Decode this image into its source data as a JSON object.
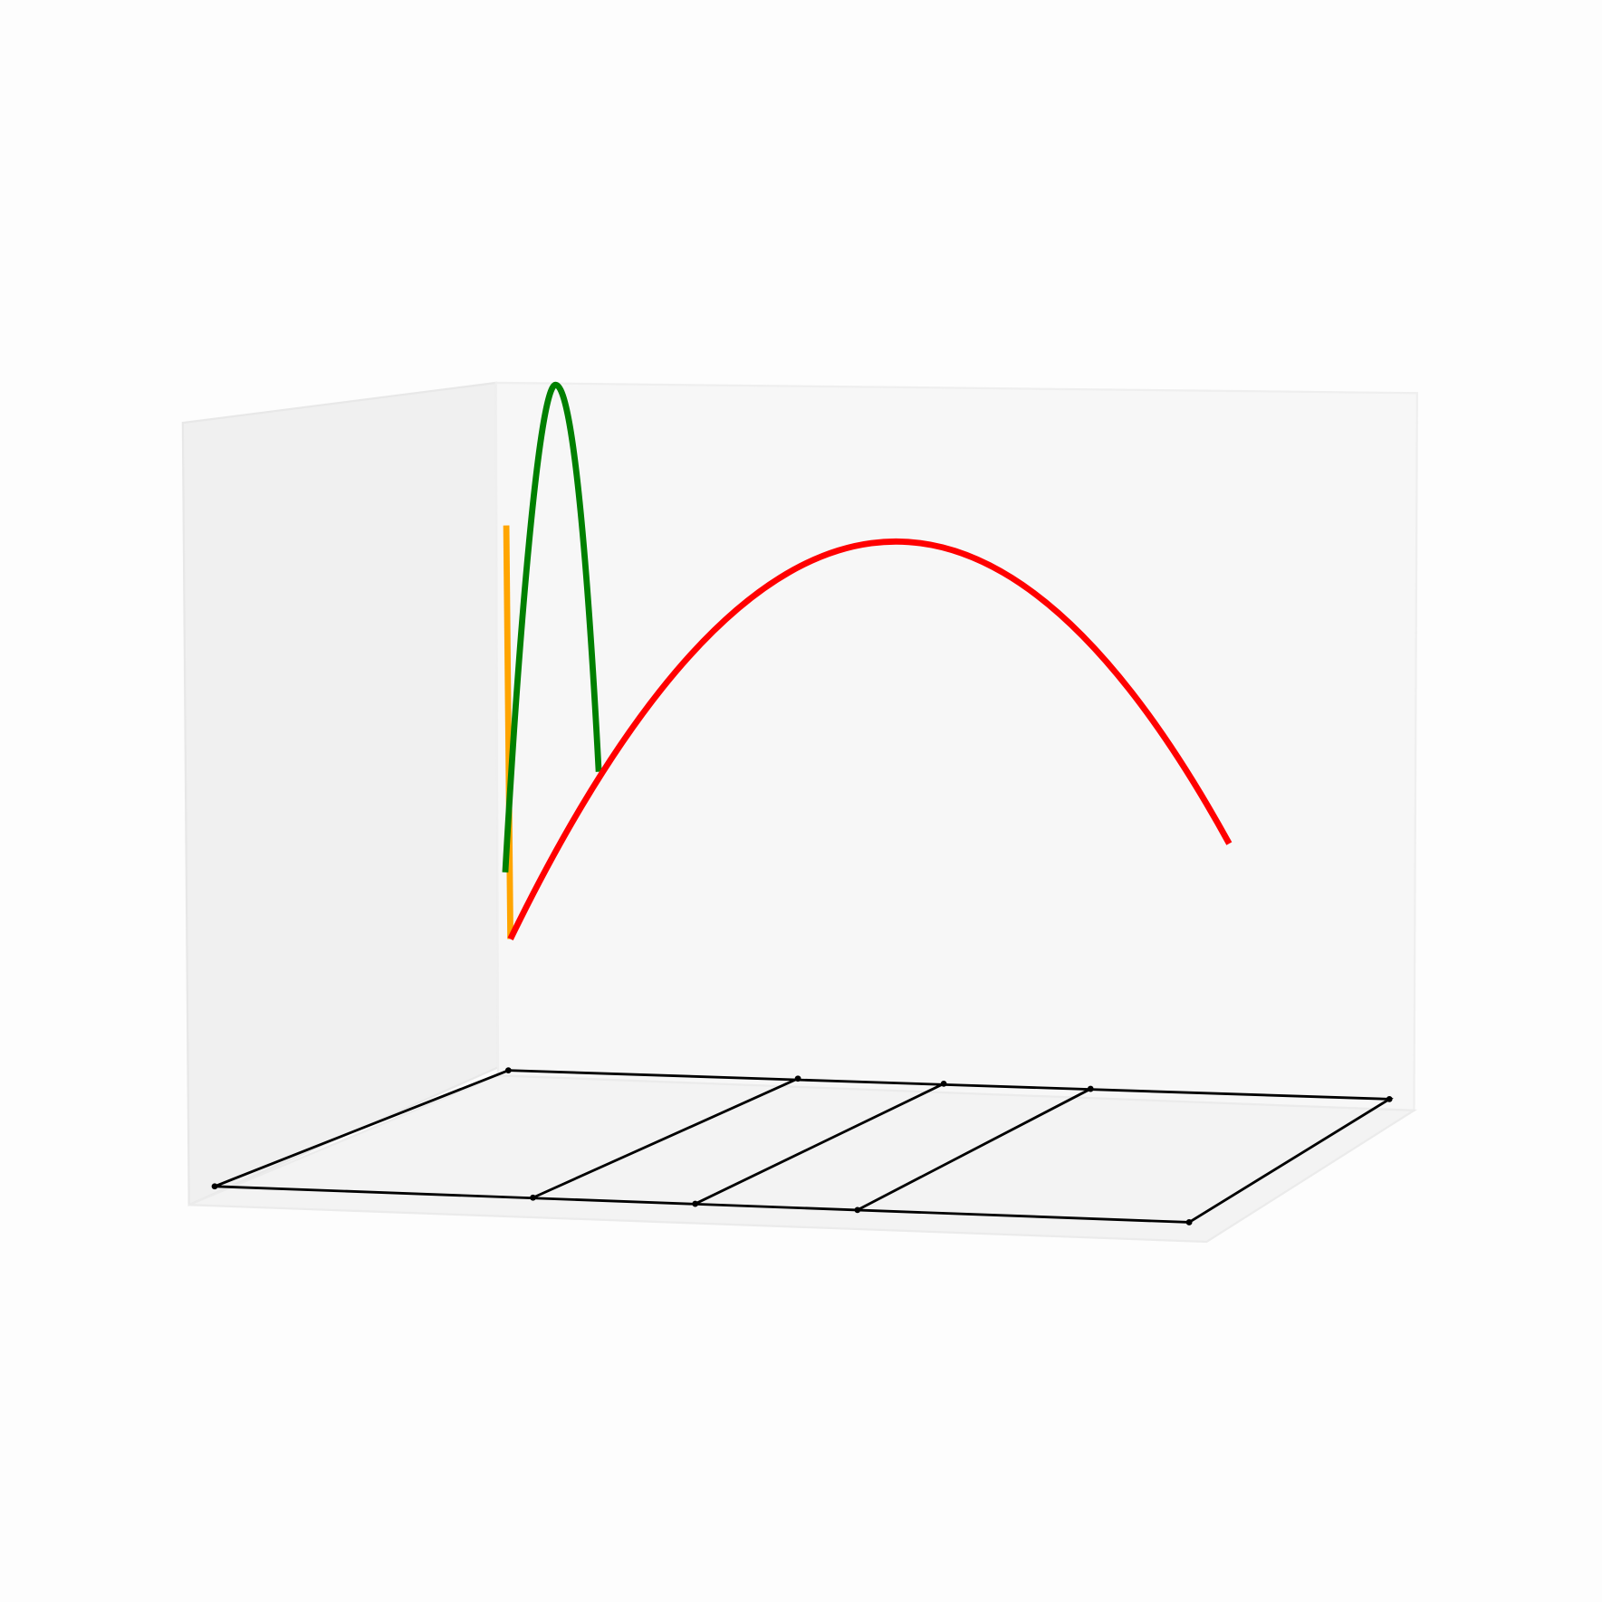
{
  "chart_data": {
    "type": "line3d",
    "series": [
      {
        "color": "orange"
      },
      {
        "color": "green"
      },
      {
        "color": "red"
      }
    ]
  }
}
